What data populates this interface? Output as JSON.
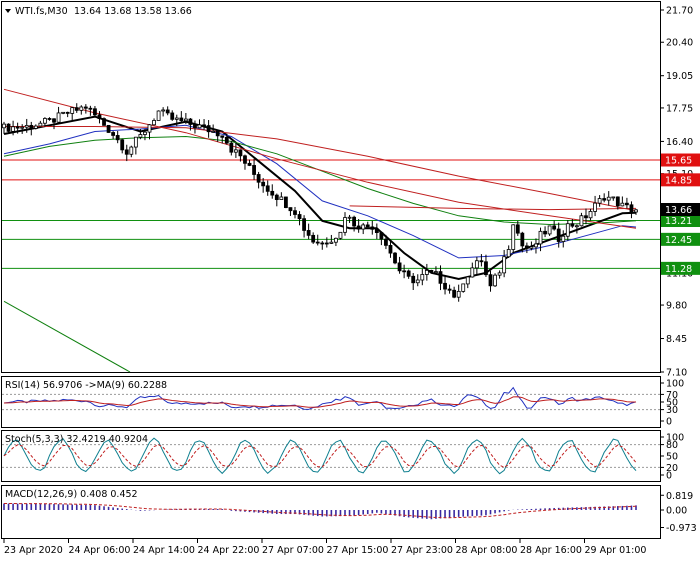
{
  "header": {
    "symbol_label": "WTI.fs,M30",
    "ohlc": "13.64 13.68 13.58 13.66"
  },
  "price_axis": {
    "ticks": [
      "21.70",
      "20.40",
      "19.05",
      "17.75",
      "16.40",
      "15.10",
      "13.75",
      "12.45",
      "11.10",
      "9.80",
      "8.45",
      "7.10"
    ],
    "current_price": "13.66"
  },
  "time_axis": {
    "labels": [
      "23 Apr 2020",
      "24 Apr 06:00",
      "24 Apr 14:00",
      "24 Apr 22:00",
      "27 Apr 07:00",
      "27 Apr 15:00",
      "27 Apr 23:00",
      "28 Apr 08:00",
      "28 Apr 16:00",
      "29 Apr 01:00"
    ]
  },
  "levels": [
    {
      "value": 15.65,
      "label": "15.65",
      "color": "#e01010"
    },
    {
      "value": 14.85,
      "label": "14.85",
      "color": "#e01010"
    },
    {
      "value": 13.21,
      "label": "13.21",
      "color": "#109010"
    },
    {
      "value": 12.45,
      "label": "12.45",
      "color": "#109010"
    },
    {
      "value": 11.28,
      "label": "11.28",
      "color": "#109010"
    }
  ],
  "rsi": {
    "label": "RSI(14) 56.9706 ->MA(9) 60.2288",
    "ticks": [
      "100",
      "70",
      "50",
      "30",
      "0"
    ]
  },
  "stoch": {
    "label": "Stoch(5,3,3) 32.4219 40.9204",
    "ticks": [
      "100",
      "80",
      "50",
      "20",
      "0"
    ]
  },
  "macd": {
    "label": "MACD(12,26,9) 0.408 0.452",
    "ticks": [
      "0.819",
      "0.00",
      "-0.973"
    ]
  },
  "chart_data": {
    "type": "candlestick",
    "title": "WTI.fs,M30",
    "x_labels": [
      "23 Apr 2020",
      "24 Apr 06:00",
      "24 Apr 14:00",
      "24 Apr 22:00",
      "27 Apr 07:00",
      "27 Apr 15:00",
      "27 Apr 23:00",
      "28 Apr 08:00",
      "28 Apr 16:00",
      "29 Apr 01:00"
    ],
    "ylim": [
      7.1,
      21.7
    ],
    "close_path": [
      [
        0,
        16.95
      ],
      [
        5,
        17.0
      ],
      [
        10,
        17.2
      ],
      [
        14,
        17.55
      ],
      [
        18,
        17.8
      ],
      [
        20,
        17.45
      ],
      [
        24,
        16.7
      ],
      [
        27,
        16.0
      ],
      [
        30,
        16.6
      ],
      [
        34,
        17.6
      ],
      [
        37,
        17.3
      ],
      [
        40,
        17.15
      ],
      [
        43,
        17.0
      ],
      [
        46,
        16.8
      ],
      [
        48,
        16.7
      ],
      [
        50,
        16.1
      ],
      [
        52,
        15.8
      ],
      [
        54,
        15.3
      ],
      [
        56,
        14.85
      ],
      [
        58,
        14.5
      ],
      [
        60,
        14.2
      ],
      [
        62,
        13.9
      ],
      [
        64,
        13.6
      ],
      [
        66,
        12.9
      ],
      [
        68,
        12.4
      ],
      [
        70,
        12.3
      ],
      [
        72,
        12.5
      ],
      [
        74,
        12.7
      ],
      [
        75,
        13.45
      ],
      [
        77,
        13.1
      ],
      [
        79,
        12.95
      ],
      [
        81,
        13.0
      ],
      [
        83,
        12.6
      ],
      [
        85,
        11.9
      ],
      [
        87,
        11.2
      ],
      [
        89,
        10.85
      ],
      [
        91,
        10.8
      ],
      [
        93,
        11.1
      ],
      [
        95,
        11.0
      ],
      [
        97,
        10.6
      ],
      [
        99,
        10.2
      ],
      [
        100,
        10.2
      ],
      [
        101,
        10.8
      ],
      [
        103,
        11.3
      ],
      [
        105,
        11.6
      ],
      [
        106,
        11.0
      ],
      [
        107,
        10.5
      ],
      [
        109,
        11.2
      ],
      [
        111,
        12.2
      ],
      [
        112,
        13.2
      ],
      [
        114,
        12.2
      ],
      [
        116,
        12.0
      ],
      [
        118,
        12.6
      ],
      [
        120,
        12.9
      ],
      [
        122,
        12.5
      ],
      [
        124,
        13.0
      ],
      [
        126,
        13.1
      ],
      [
        128,
        13.4
      ],
      [
        130,
        13.8
      ],
      [
        132,
        14.2
      ],
      [
        134,
        14.05
      ],
      [
        136,
        13.8
      ],
      [
        138,
        13.66
      ]
    ],
    "series": [
      {
        "name": "MA(9)",
        "color": "#000000",
        "values": [
          [
            0,
            16.7
          ],
          [
            10,
            17.05
          ],
          [
            20,
            17.4
          ],
          [
            30,
            16.8
          ],
          [
            40,
            17.2
          ],
          [
            48,
            16.8
          ],
          [
            56,
            15.6
          ],
          [
            64,
            14.4
          ],
          [
            70,
            13.2
          ],
          [
            76,
            12.9
          ],
          [
            82,
            12.9
          ],
          [
            88,
            11.9
          ],
          [
            94,
            11.1
          ],
          [
            100,
            10.85
          ],
          [
            106,
            11.1
          ],
          [
            112,
            11.9
          ],
          [
            118,
            12.3
          ],
          [
            124,
            12.7
          ],
          [
            130,
            13.1
          ],
          [
            136,
            13.5
          ],
          [
            139,
            13.52
          ]
        ]
      },
      {
        "name": "MA(21)",
        "color": "#2030c0",
        "values": [
          [
            0,
            15.9
          ],
          [
            10,
            16.3
          ],
          [
            20,
            16.8
          ],
          [
            30,
            16.9
          ],
          [
            40,
            17.05
          ],
          [
            50,
            16.6
          ],
          [
            60,
            15.5
          ],
          [
            70,
            14.0
          ],
          [
            80,
            13.4
          ],
          [
            90,
            12.6
          ],
          [
            100,
            11.7
          ],
          [
            110,
            11.8
          ],
          [
            120,
            12.2
          ],
          [
            130,
            12.7
          ],
          [
            136,
            13.0
          ],
          [
            139,
            12.95
          ]
        ]
      },
      {
        "name": "MA(50)",
        "color": "#108010",
        "values": [
          [
            0,
            15.8
          ],
          [
            10,
            16.2
          ],
          [
            20,
            16.45
          ],
          [
            30,
            16.55
          ],
          [
            40,
            16.6
          ],
          [
            50,
            16.4
          ],
          [
            60,
            15.9
          ],
          [
            70,
            15.2
          ],
          [
            80,
            14.5
          ],
          [
            90,
            13.9
          ],
          [
            100,
            13.4
          ],
          [
            110,
            13.15
          ],
          [
            120,
            13.05
          ],
          [
            130,
            13.1
          ],
          [
            139,
            13.2
          ]
        ]
      },
      {
        "name": "MA(100)",
        "color": "#c02020",
        "values": [
          [
            0,
            18.5
          ],
          [
            20,
            17.55
          ],
          [
            40,
            16.75
          ],
          [
            60,
            15.7
          ],
          [
            80,
            14.75
          ],
          [
            100,
            13.95
          ],
          [
            120,
            13.4
          ],
          [
            139,
            12.9
          ]
        ]
      },
      {
        "name": "MA(200)",
        "color": "#c02020",
        "values": [
          [
            0,
            17.0
          ],
          [
            20,
            17.0
          ],
          [
            40,
            16.95
          ],
          [
            60,
            16.5
          ],
          [
            80,
            15.8
          ],
          [
            100,
            15.0
          ],
          [
            120,
            14.3
          ],
          [
            139,
            13.6
          ]
        ]
      },
      {
        "name": "Trend",
        "color": "#c02020",
        "values": [
          [
            76,
            13.8
          ],
          [
            100,
            13.7
          ],
          [
            120,
            13.65
          ],
          [
            139,
            13.7
          ]
        ]
      }
    ]
  }
}
